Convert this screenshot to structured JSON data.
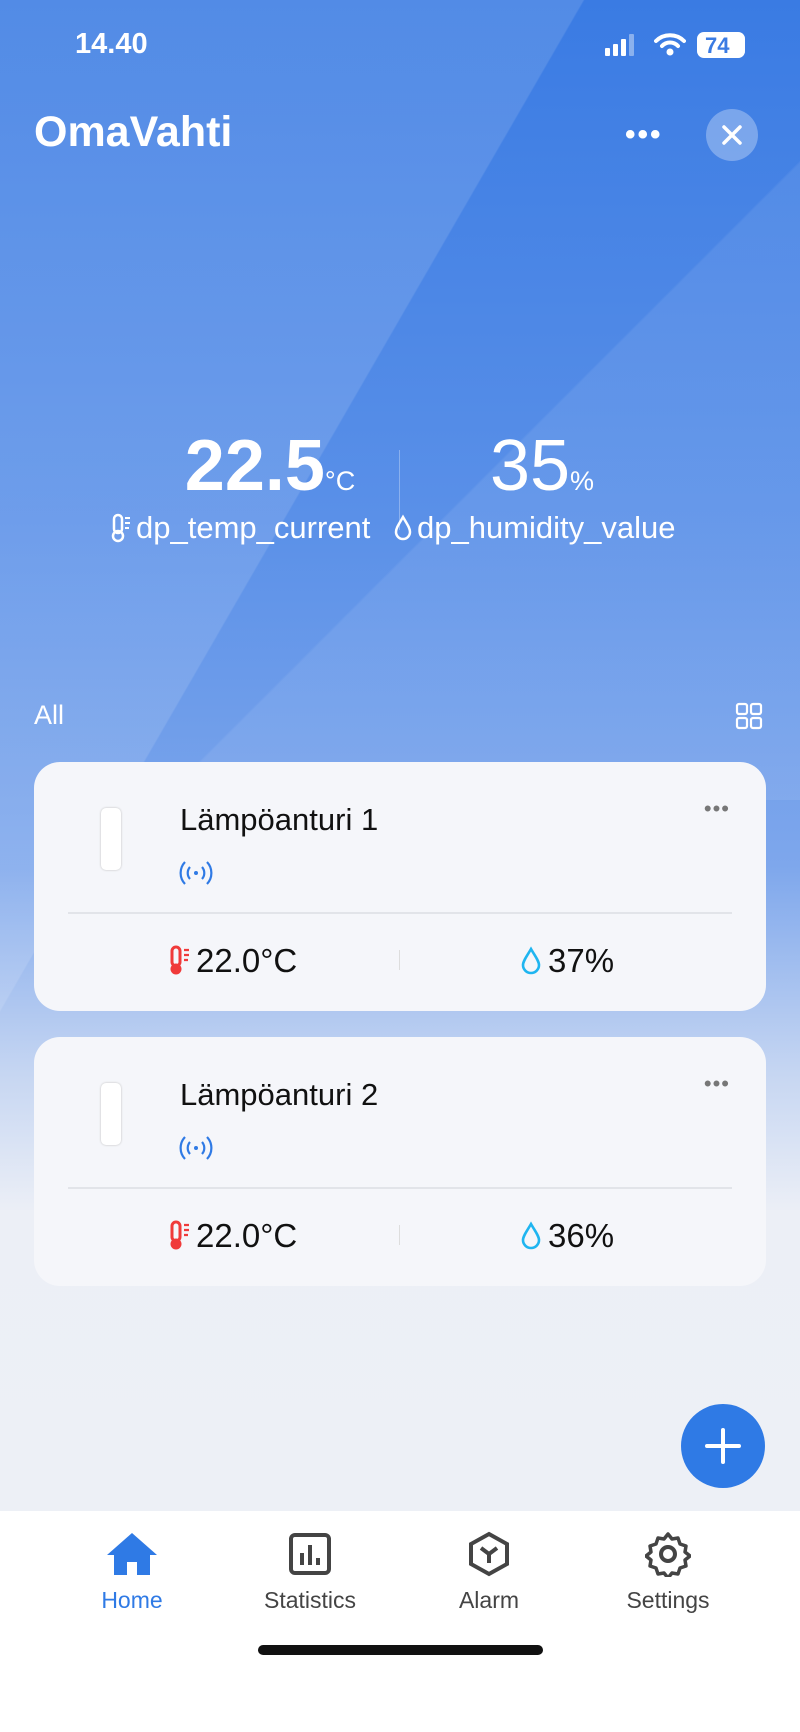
{
  "status_bar": {
    "time": "14.40",
    "battery": "74"
  },
  "header": {
    "title": "OmaVahti"
  },
  "summary": {
    "temperature": {
      "value": "22.5",
      "unit": "°C",
      "label": "dp_temp_current"
    },
    "humidity": {
      "value": "35",
      "unit": "%",
      "label": "dp_humidity_value"
    }
  },
  "section": {
    "label": "All"
  },
  "devices": [
    {
      "name": "Lämpöanturi 1",
      "temperature": "22.0°C",
      "humidity": "37%"
    },
    {
      "name": "Lämpöanturi 2",
      "temperature": "22.0°C",
      "humidity": "36%"
    }
  ],
  "tabs": [
    {
      "label": "Home",
      "icon": "home-icon",
      "active": true
    },
    {
      "label": "Statistics",
      "icon": "statistics-icon"
    },
    {
      "label": "Alarm",
      "icon": "alarm-icon"
    },
    {
      "label": "Settings",
      "icon": "gear-icon"
    }
  ],
  "colors": {
    "accent": "#2f7ae5",
    "temp_icon": "#f03a3a",
    "humidity_icon": "#1fb5f0"
  }
}
